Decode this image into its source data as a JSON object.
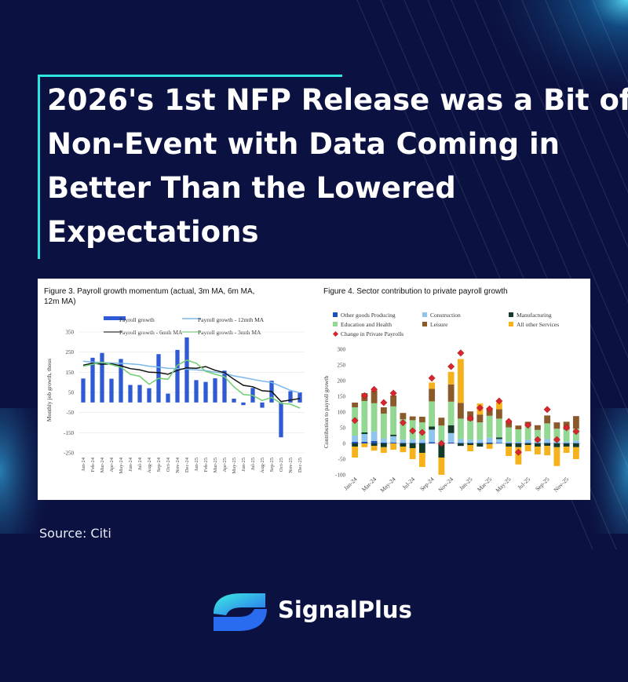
{
  "page": {
    "title_lines": [
      "2026's 1st NFP Release was a Bit of",
      "Non-Event with Data Coming in",
      "Better Than the Lowered",
      "Expectations"
    ],
    "source": "Source: Citi",
    "brand": "SignalPlus",
    "accent_color": "#2ee6e0",
    "background_color": "#0b1140"
  },
  "chart_data": [
    {
      "type": "bar",
      "title": "Figure 3. Payroll growth momentum (actual, 3m MA, 6m MA, 12m MA)",
      "ylabel": "Monthly job growth, thous",
      "xlabel": "",
      "ylim": [
        -250,
        350
      ],
      "yticks": [
        350,
        250,
        150,
        50,
        -50,
        -150,
        -250
      ],
      "legend_position": "top",
      "categories": [
        "Jan-24",
        "Feb-24",
        "Mar-24",
        "Apr-24",
        "May-24",
        "Jun-24",
        "Jul-24",
        "Aug-24",
        "Sep-24",
        "Oct-24",
        "Nov-24",
        "Dec-24",
        "Jan-25",
        "Feb-25",
        "Mar-25",
        "Apr-25",
        "May-25",
        "Jun-25",
        "Jul-25",
        "Aug-25",
        "Sep-25",
        "Oct-25",
        "Nov-25",
        "Dec-25"
      ],
      "series": [
        {
          "name": "Payroll growth",
          "kind": "bar",
          "color": "#2f5ad6",
          "values": [
            119,
            222,
            246,
            118,
            216,
            87,
            87,
            71,
            240,
            44,
            261,
            323,
            111,
            102,
            120,
            158,
            19,
            -13,
            72,
            -26,
            108,
            -173,
            56,
            50
          ]
        },
        {
          "name": "Payroll growth - 12mth MA",
          "kind": "line",
          "color": "#7ab8ea",
          "values": [
            205,
            200,
            198,
            196,
            194,
            192,
            188,
            180,
            176,
            170,
            168,
            165,
            162,
            158,
            150,
            145,
            132,
            124,
            115,
            106,
            100,
            80,
            60,
            48
          ]
        },
        {
          "name": "Payroll growth - 6mth MA",
          "kind": "line",
          "color": "#111111",
          "values": [
            185,
            195,
            190,
            192,
            182,
            168,
            162,
            150,
            148,
            140,
            160,
            172,
            170,
            178,
            160,
            148,
            115,
            85,
            78,
            58,
            55,
            5,
            12,
            20
          ]
        },
        {
          "name": "Payroll growth - 3mth MA",
          "kind": "line",
          "color": "#6fcf73",
          "values": [
            180,
            190,
            200,
            188,
            175,
            140,
            130,
            90,
            120,
            115,
            185,
            210,
            195,
            155,
            140,
            128,
            78,
            40,
            35,
            10,
            25,
            -5,
            -8,
            -28
          ]
        }
      ]
    },
    {
      "type": "bar",
      "title": "Figure 4. Sector contribution to private payroll growth",
      "ylabel": "Contribution to payroll growth",
      "xlabel": "",
      "ylim": [
        -100,
        300
      ],
      "yticks": [
        300,
        250,
        200,
        150,
        100,
        50,
        0,
        -50,
        -100
      ],
      "legend_position": "top",
      "categories": [
        "Jan-24",
        "Feb-24",
        "Mar-24",
        "Apr-24",
        "May-24",
        "Jun-24",
        "Jul-24",
        "Aug-24",
        "Sep-24",
        "Oct-24",
        "Nov-24",
        "Dec-24",
        "Jan-25",
        "Feb-25",
        "Mar-25",
        "Apr-25",
        "May-25",
        "Jun-25",
        "Jul-25",
        "Aug-25",
        "Sep-25",
        "Oct-25",
        "Nov-25",
        "Dec-25"
      ],
      "tick_labels": [
        "Jan-24",
        "Mar-24",
        "May-24",
        "Jul-24",
        "Sep-24",
        "Nov-24",
        "Jan-25",
        "Mar-25",
        "May-25",
        "Jul-25",
        "Sep-25",
        "Nov-25"
      ],
      "series": [
        {
          "name": "Other goods Producing",
          "kind": "stack",
          "color": "#1f4fb8",
          "values": [
            5,
            5,
            8,
            3,
            3,
            2,
            2,
            2,
            4,
            2,
            3,
            2,
            2,
            2,
            3,
            2,
            1,
            1,
            2,
            1,
            2,
            1,
            1,
            1
          ]
        },
        {
          "name": "Construction",
          "kind": "stack",
          "color": "#8fc5ec",
          "values": [
            20,
            25,
            30,
            12,
            20,
            10,
            12,
            10,
            40,
            5,
            30,
            12,
            10,
            10,
            15,
            12,
            5,
            4,
            10,
            4,
            12,
            6,
            5,
            8
          ]
        },
        {
          "name": "Manufacturing",
          "kind": "stack",
          "color": "#143a2a",
          "values": [
            -10,
            5,
            -8,
            -12,
            5,
            -10,
            -15,
            -30,
            10,
            -45,
            25,
            -8,
            -5,
            -10,
            -2,
            5,
            -10,
            -12,
            -5,
            -10,
            -8,
            -12,
            -10,
            -12
          ]
        },
        {
          "name": "Education and Health",
          "kind": "stack",
          "color": "#92d892",
          "values": [
            90,
            100,
            90,
            80,
            90,
            65,
            60,
            55,
            80,
            50,
            75,
            65,
            60,
            55,
            70,
            60,
            45,
            40,
            45,
            38,
            50,
            40,
            38,
            38
          ]
        },
        {
          "name": "Leisure",
          "kind": "stack",
          "color": "#8b5a2b",
          "values": [
            15,
            25,
            40,
            20,
            35,
            20,
            12,
            18,
            40,
            25,
            55,
            50,
            30,
            25,
            25,
            30,
            18,
            12,
            12,
            15,
            25,
            20,
            25,
            40
          ]
        },
        {
          "name": "All other Services",
          "kind": "stack",
          "color": "#f6b21d",
          "values": [
            -35,
            -12,
            -15,
            -18,
            -20,
            -18,
            -35,
            -45,
            20,
            -55,
            40,
            140,
            -20,
            35,
            -15,
            22,
            -30,
            -55,
            -20,
            -25,
            -30,
            -60,
            -20,
            -38
          ]
        },
        {
          "name": "Change in Private Payrolls",
          "kind": "marker",
          "color": "#d7262d",
          "values": [
            73,
            152,
            172,
            130,
            160,
            66,
            40,
            35,
            208,
            0,
            245,
            288,
            80,
            113,
            110,
            135,
            70,
            -28,
            58,
            12,
            108,
            12,
            50,
            38
          ]
        }
      ]
    }
  ]
}
